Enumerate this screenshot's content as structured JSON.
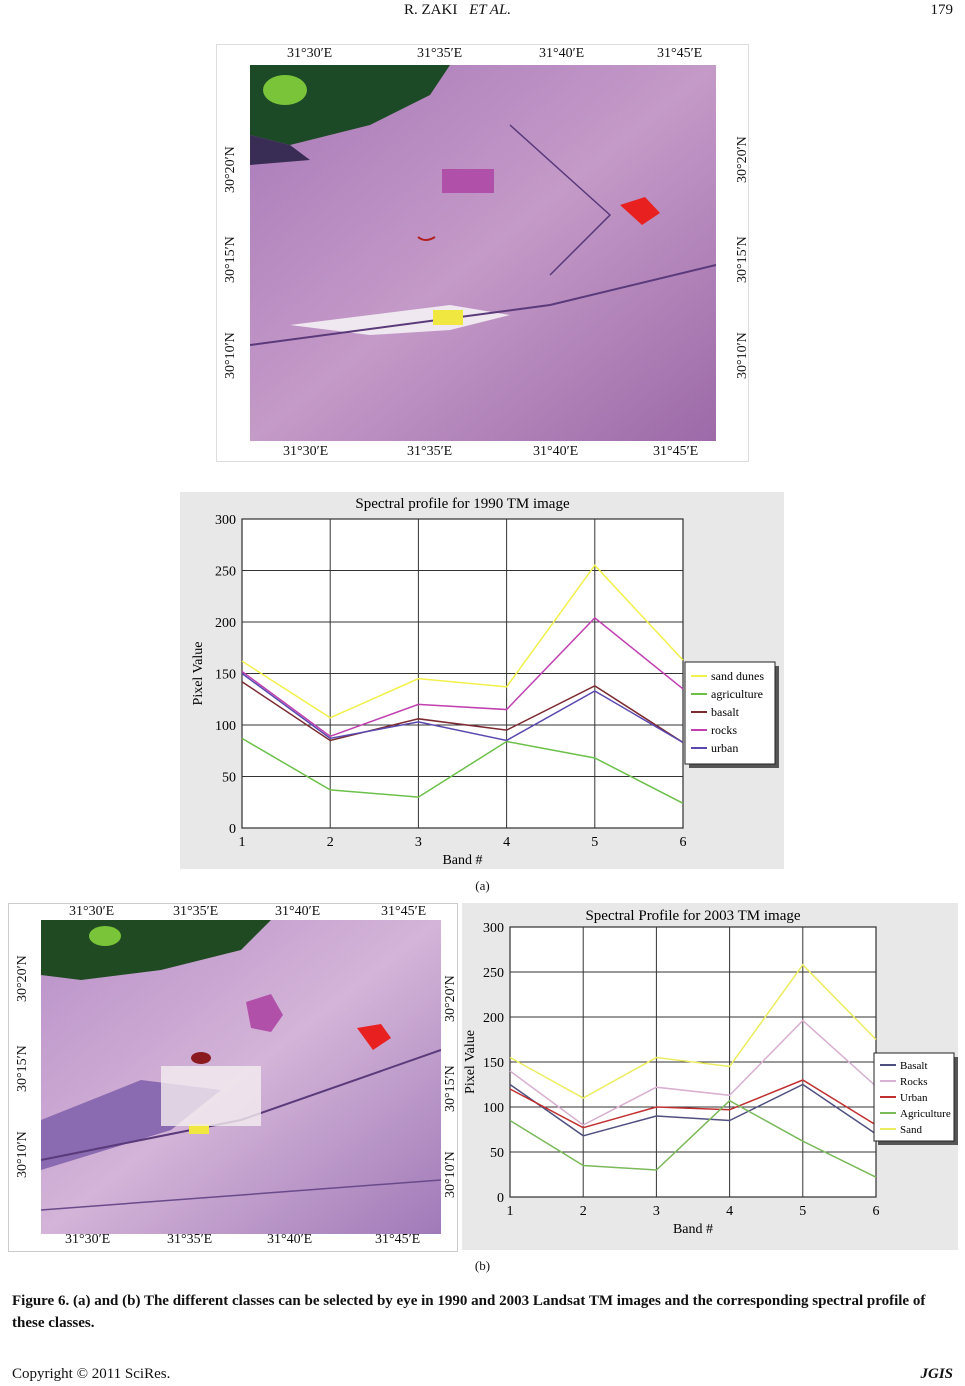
{
  "header": {
    "running_head_left": "R. ZAKI",
    "running_head_italic": "ET AL.",
    "page_number": "179"
  },
  "map_a": {
    "top_labels": [
      "31°30′E",
      "31°35′E",
      "31°40′E",
      "31°45′E"
    ],
    "bottom_labels": [
      "31°30′E",
      "31°35′E",
      "31°40′E",
      "31°45′E"
    ],
    "left_labels": [
      "30°20′N",
      "30°15′N",
      "30°10′N"
    ],
    "right_labels": [
      "30°20′N",
      "30°15′N",
      "30°10′N"
    ]
  },
  "map_b": {
    "top_labels": [
      "31°30′E",
      "31°35′E",
      "31°40′E",
      "31°45′E"
    ],
    "bottom_labels": [
      "31°30′E",
      "31°35′E",
      "31°40′E",
      "31°45′E"
    ],
    "left_labels": [
      "30°20′N",
      "30°15′N",
      "30°10′N"
    ],
    "right_labels": [
      "30°20′N",
      "30°15′N",
      "30°10′N"
    ]
  },
  "sub_label_a": "(a)",
  "sub_label_b": "(b)",
  "figure_caption": "Figure 6. (a) and (b) The different classes can be selected by eye in 1990 and 2003 Landsat TM images and the corresponding spectral profile of these classes.",
  "footer": {
    "copyright": "Copyright © 2011 SciRes.",
    "journal": "JGIS"
  },
  "chart_data": [
    {
      "type": "line",
      "title": "Spectral profile for 1990 TM image",
      "xlabel": "Band #",
      "ylabel": "Pixel Value",
      "x": [
        1,
        2,
        3,
        4,
        5,
        6
      ],
      "xlim": [
        1,
        6
      ],
      "ylim": [
        0,
        300
      ],
      "yticks": [
        0,
        50,
        100,
        150,
        200,
        250,
        300
      ],
      "grid": true,
      "legend_position": "right",
      "series": [
        {
          "name": "sand dunes",
          "color": "#f2f04a",
          "values": [
            162,
            107,
            145,
            137,
            255,
            163
          ]
        },
        {
          "name": "agriculture",
          "color": "#6cc04a",
          "values": [
            87,
            37,
            30,
            84,
            68,
            24
          ]
        },
        {
          "name": "basalt",
          "color": "#7a2a30",
          "values": [
            142,
            85,
            106,
            95,
            138,
            83
          ]
        },
        {
          "name": "rocks",
          "color": "#c040b0",
          "values": [
            152,
            89,
            120,
            115,
            204,
            135
          ]
        },
        {
          "name": "urban",
          "color": "#5a48b0",
          "values": [
            150,
            87,
            103,
            85,
            133,
            83
          ]
        }
      ]
    },
    {
      "type": "line",
      "title": "Spectral Profile for 2003 TM image",
      "xlabel": "Band #",
      "ylabel": "Pixel Value",
      "x": [
        1,
        2,
        3,
        4,
        5,
        6
      ],
      "xlim": [
        1,
        6
      ],
      "ylim": [
        0,
        300
      ],
      "yticks": [
        0,
        50,
        100,
        150,
        200,
        250,
        300
      ],
      "grid": true,
      "legend_position": "right",
      "series": [
        {
          "name": "Basalt",
          "color": "#505080",
          "values": [
            125,
            68,
            90,
            85,
            125,
            70
          ]
        },
        {
          "name": "Rocks",
          "color": "#d8b0d0",
          "values": [
            140,
            80,
            122,
            113,
            196,
            123
          ]
        },
        {
          "name": "Urban",
          "color": "#c03030",
          "values": [
            120,
            77,
            100,
            97,
            130,
            80
          ]
        },
        {
          "name": "Agriculture",
          "color": "#7aba5a",
          "values": [
            85,
            35,
            30,
            107,
            62,
            22
          ]
        },
        {
          "name": "Sand",
          "color": "#ecec60",
          "values": [
            155,
            110,
            155,
            145,
            258,
            175
          ]
        }
      ]
    }
  ]
}
